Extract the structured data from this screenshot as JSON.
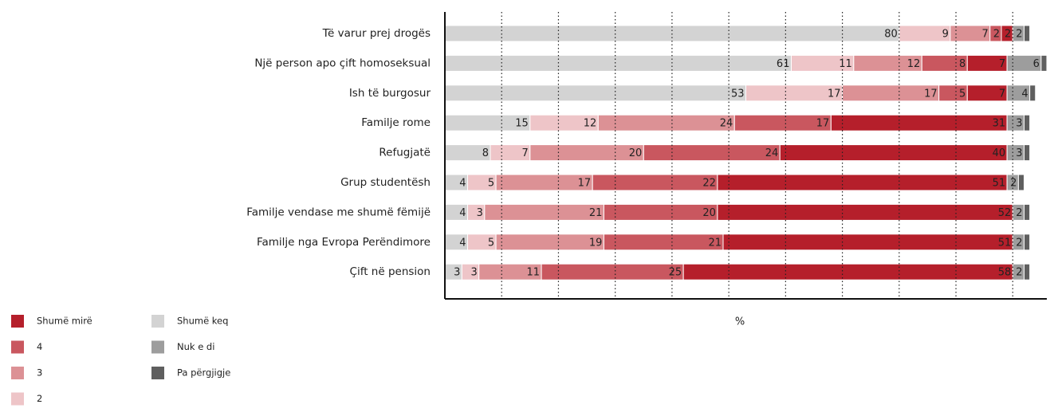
{
  "chart_data": {
    "type": "stacked-bar",
    "orientation": "horizontal",
    "xlabel": "%",
    "categories": [
      "Të varur prej drogës",
      "Një person apo çift homoseksual",
      "Ish të burgosur",
      "Familje rome",
      "Refugjatë",
      "Grup studentësh",
      "Familje vendase me shumë fëmijë",
      "Familje nga Evropa Perëndimore",
      "Çift në pension"
    ],
    "series": [
      {
        "name": "Shumë keq",
        "color": "#d3d3d3",
        "values": [
          80,
          61,
          53,
          15,
          8,
          4,
          4,
          4,
          3
        ]
      },
      {
        "name": "2",
        "color": "#eec5c8",
        "values": [
          9,
          11,
          17,
          12,
          7,
          5,
          3,
          5,
          3
        ]
      },
      {
        "name": "3",
        "color": "#dc9195",
        "values": [
          7,
          12,
          17,
          24,
          20,
          17,
          21,
          19,
          11
        ]
      },
      {
        "name": "4",
        "color": "#c9575f",
        "values": [
          2,
          8,
          5,
          17,
          24,
          22,
          20,
          21,
          25
        ]
      },
      {
        "name": "Shumë mirë",
        "color": "#b51f2b",
        "values": [
          2,
          7,
          7,
          31,
          40,
          51,
          52,
          51,
          58
        ]
      },
      {
        "name": "Nuk e di",
        "color": "#9d9d9d",
        "values": [
          2,
          6,
          4,
          3,
          3,
          2,
          2,
          2,
          2
        ]
      },
      {
        "name": "Pa përgjigje",
        "color": "#5f5f5f",
        "values": [
          1,
          1,
          1,
          1,
          1,
          1,
          1,
          1,
          1
        ]
      }
    ],
    "xlim": [
      0,
      106
    ],
    "xticks": [
      0,
      10,
      20,
      30,
      40,
      50,
      60,
      70,
      80,
      90,
      100
    ],
    "grid": true
  }
}
